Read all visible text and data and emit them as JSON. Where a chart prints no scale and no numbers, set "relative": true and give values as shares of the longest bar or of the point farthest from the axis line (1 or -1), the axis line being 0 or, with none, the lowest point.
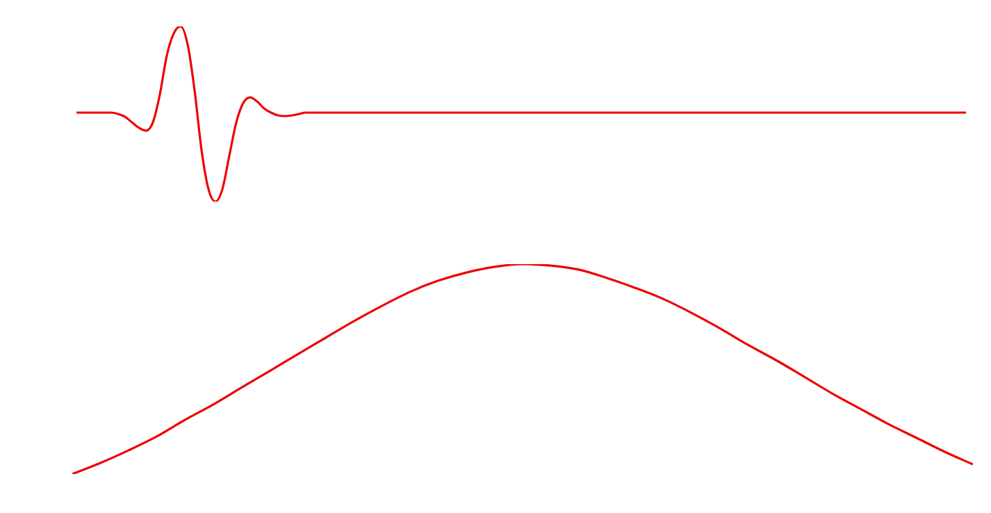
{
  "chart_data": [
    {
      "type": "line",
      "relative": true,
      "color": "#ee0000",
      "categories": [
        null,
        null,
        null,
        null,
        null,
        null,
        null,
        null,
        null,
        null,
        null,
        null,
        null,
        null,
        null,
        null,
        null,
        null,
        null,
        null,
        null,
        null,
        null,
        null,
        null,
        null,
        null,
        null,
        null,
        null,
        null,
        null,
        null,
        null,
        null,
        null,
        null,
        null,
        null,
        null,
        null,
        null,
        null,
        null,
        null,
        null,
        null,
        null,
        null,
        null,
        null,
        null,
        null,
        null,
        null,
        null,
        null,
        null,
        null,
        null,
        null,
        null,
        null,
        null,
        null,
        null,
        null,
        null,
        null,
        null,
        null,
        null,
        null,
        null,
        null,
        null,
        null,
        null,
        null,
        null,
        null,
        null,
        null,
        null,
        null,
        null,
        null,
        null,
        null,
        null,
        null,
        null,
        null,
        null,
        null,
        null,
        null,
        null,
        null,
        null,
        null,
        null,
        null,
        null,
        null,
        null,
        null,
        null,
        null,
        null,
        null,
        null,
        null,
        null,
        null,
        null,
        null,
        null,
        null,
        null,
        null,
        null,
        null,
        null,
        null,
        null,
        null,
        null,
        null
      ],
      "values": [
        0.508,
        0.508,
        0.508,
        0.508,
        0.508,
        0.508,
        0.5,
        0.484,
        0.452,
        0.421,
        0.405,
        0.452,
        0.611,
        0.833,
        0.96,
        1,
        0.897,
        0.635,
        0.294,
        0.071,
        0,
        0.071,
        0.262,
        0.452,
        0.563,
        0.595,
        0.571,
        0.532,
        0.508,
        0.492,
        0.488,
        0.492,
        0.5,
        0.508,
        0.508,
        0.508,
        0.508,
        0.508,
        0.508,
        0.508,
        0.508,
        0.508,
        0.508,
        0.508,
        0.508,
        0.508,
        0.508,
        0.508,
        0.508,
        0.508,
        0.508,
        0.508,
        0.508,
        0.508,
        0.508,
        0.508,
        0.508,
        0.508,
        0.508,
        0.508,
        0.508,
        0.508,
        0.508,
        0.508,
        0.508,
        0.508,
        0.508,
        0.508,
        0.508,
        0.508,
        0.508,
        0.508,
        0.508,
        0.508,
        0.508,
        0.508,
        0.508,
        0.508,
        0.508,
        0.508,
        0.508,
        0.508,
        0.508,
        0.508,
        0.508,
        0.508,
        0.508,
        0.508,
        0.508,
        0.508,
        0.508,
        0.508,
        0.508,
        0.508,
        0.508,
        0.508,
        0.508,
        0.508,
        0.508,
        0.508,
        0.508,
        0.508,
        0.508,
        0.508,
        0.508,
        0.508,
        0.508,
        0.508,
        0.508,
        0.508,
        0.508,
        0.508,
        0.508,
        0.508,
        0.508,
        0.508,
        0.508,
        0.508,
        0.508,
        0.508,
        0.508,
        0.508,
        0.508,
        0.508,
        0.508,
        0.508,
        0.508,
        0.508,
        0.508
      ]
    },
    {
      "type": "line",
      "relative": true,
      "color": "#ee0000",
      "categories": [
        null,
        null,
        null,
        null,
        null,
        null,
        null,
        null,
        null,
        null,
        null,
        null,
        null,
        null,
        null,
        null,
        null,
        null,
        null,
        null,
        null,
        null,
        null,
        null,
        null,
        null,
        null,
        null,
        null,
        null,
        null,
        null,
        null
      ],
      "values": [
        0,
        0.053,
        0.113,
        0.179,
        0.258,
        0.331,
        0.411,
        0.49,
        0.57,
        0.649,
        0.728,
        0.801,
        0.868,
        0.921,
        0.96,
        0.987,
        1,
        0.993,
        0.974,
        0.934,
        0.887,
        0.834,
        0.768,
        0.695,
        0.616,
        0.543,
        0.464,
        0.384,
        0.311,
        0.238,
        0.172,
        0.106,
        0.046
      ]
    }
  ]
}
